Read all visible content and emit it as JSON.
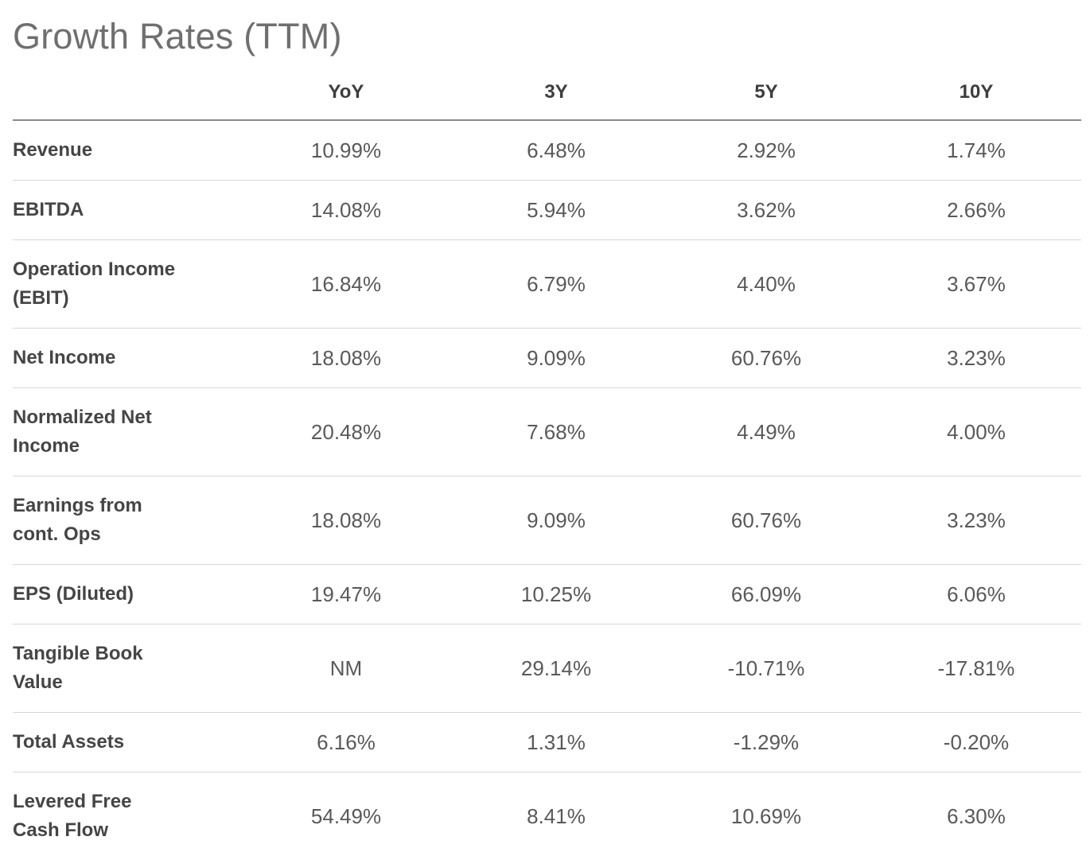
{
  "section": {
    "title": "Growth Rates (TTM)"
  },
  "colors": {
    "title_text": "#6f6f6f",
    "header_text": "#3d3d3d",
    "label_text": "#454545",
    "value_text": "#595959",
    "header_rule": "#8c8c8c",
    "row_rule": "#d8d8d8",
    "background": "#ffffff"
  },
  "chart_data": {
    "type": "table",
    "title": "Growth Rates (TTM)",
    "columns": [
      "YoY",
      "3Y",
      "5Y",
      "10Y"
    ],
    "rows": [
      {
        "label": "Revenue",
        "values": [
          "10.99%",
          "6.48%",
          "2.92%",
          "1.74%"
        ]
      },
      {
        "label": "EBITDA",
        "values": [
          "14.08%",
          "5.94%",
          "3.62%",
          "2.66%"
        ]
      },
      {
        "label": "Operation Income\n(EBIT)",
        "values": [
          "16.84%",
          "6.79%",
          "4.40%",
          "3.67%"
        ]
      },
      {
        "label": "Net Income",
        "values": [
          "18.08%",
          "9.09%",
          "60.76%",
          "3.23%"
        ]
      },
      {
        "label": "Normalized Net\nIncome",
        "values": [
          "20.48%",
          "7.68%",
          "4.49%",
          "4.00%"
        ]
      },
      {
        "label": "Earnings from\ncont. Ops",
        "values": [
          "18.08%",
          "9.09%",
          "60.76%",
          "3.23%"
        ]
      },
      {
        "label": "EPS (Diluted)",
        "values": [
          "19.47%",
          "10.25%",
          "66.09%",
          "6.06%"
        ]
      },
      {
        "label": "Tangible Book\nValue",
        "values": [
          "NM",
          "29.14%",
          "-10.71%",
          "-17.81%"
        ]
      },
      {
        "label": "Total Assets",
        "values": [
          "6.16%",
          "1.31%",
          "-1.29%",
          "-0.20%"
        ]
      },
      {
        "label": "Levered Free\nCash Flow",
        "values": [
          "54.49%",
          "8.41%",
          "10.69%",
          "6.30%"
        ]
      }
    ],
    "layout": {
      "legend": "none",
      "grid": "horizontal-rules",
      "value_alignment": "center",
      "label_alignment": "left"
    }
  }
}
